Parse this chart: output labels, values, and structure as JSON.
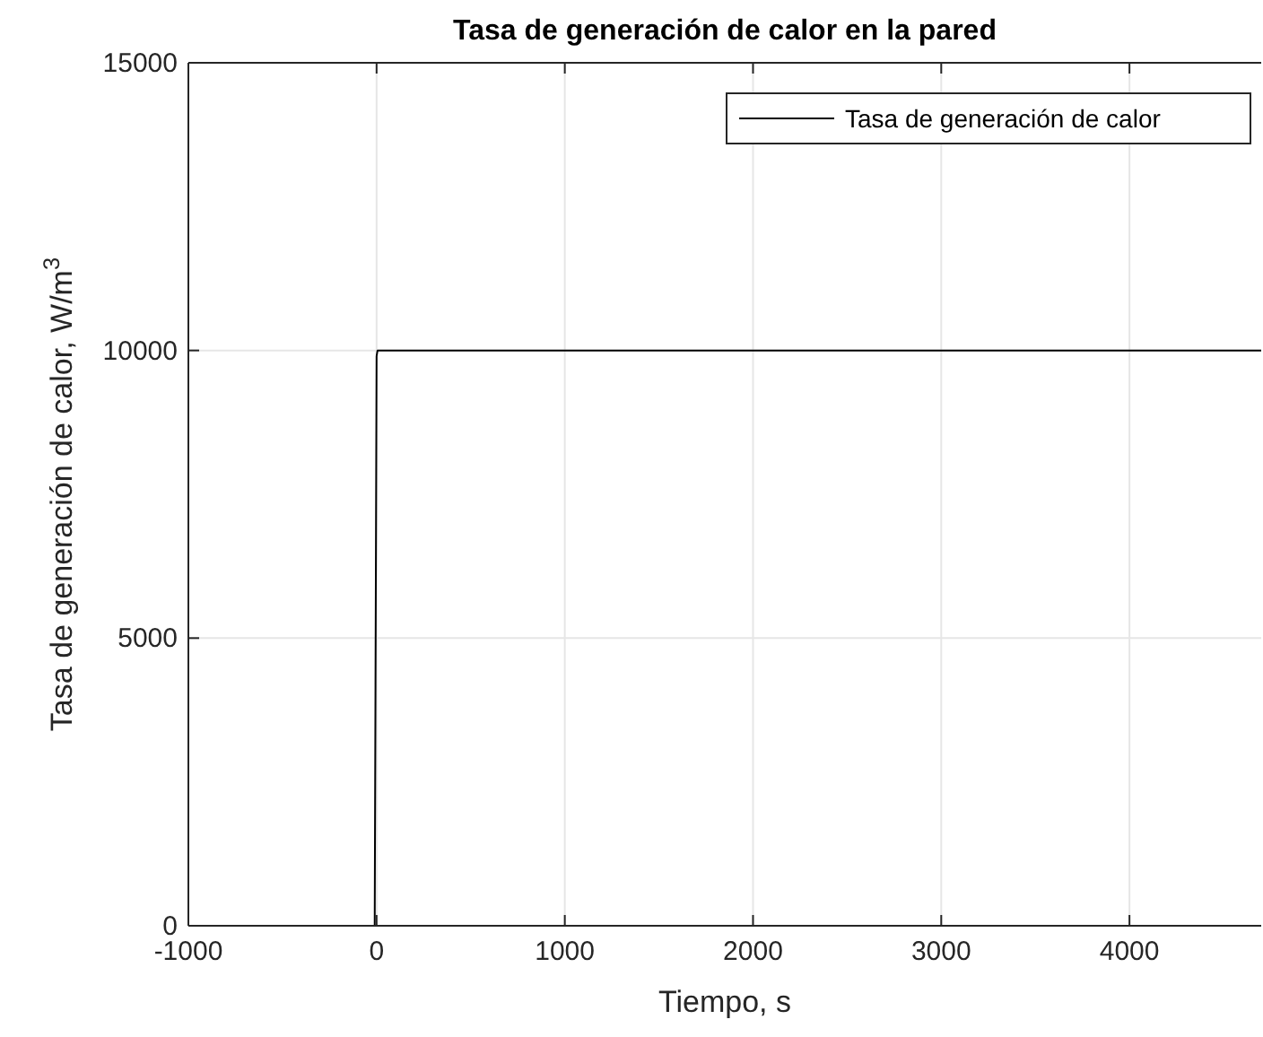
{
  "chart_data": {
    "type": "line",
    "title": "Tasa de generación de calor en la pared",
    "xlabel": "Tiempo, s",
    "ylabel": "Tasa de generación de calor, W/m$^{3}$",
    "series": [
      {
        "name": "Tasa de generación de calor",
        "color": "#000000",
        "x": [
          -10,
          0,
          5,
          4700
        ],
        "values": [
          0,
          9900,
          10000,
          10000
        ]
      }
    ],
    "xlim": [
      -1000,
      4700
    ],
    "xticks": [
      -1000,
      0,
      1000,
      2000,
      3000,
      4000
    ],
    "ylim": [
      0,
      15000
    ],
    "yticks": [
      0,
      5000,
      10000,
      15000
    ],
    "grid": true,
    "legend": "top right",
    "line_style": "solid",
    "marker": "none"
  }
}
